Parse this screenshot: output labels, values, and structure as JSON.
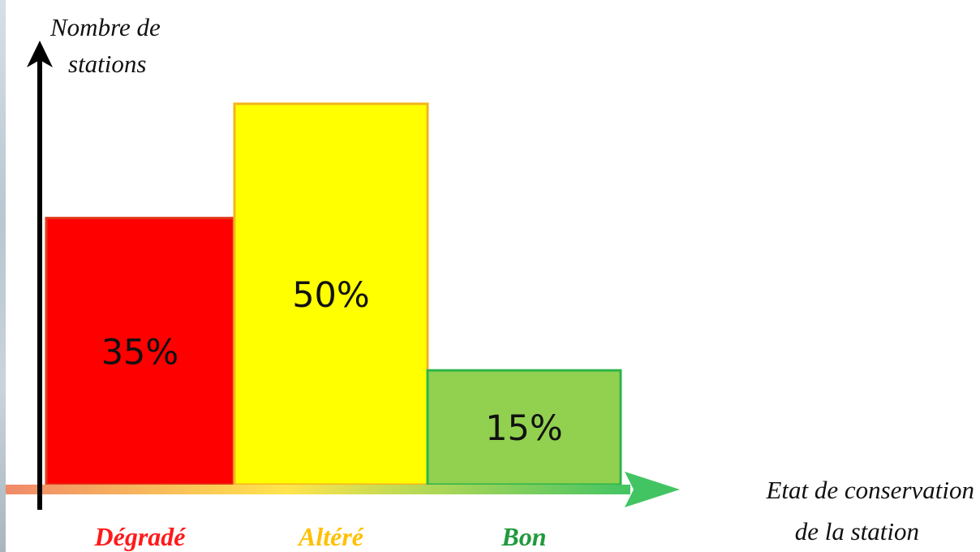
{
  "chart_data": {
    "type": "bar",
    "ylabel_lines": [
      "Nombre de",
      "stations"
    ],
    "xlabel_lines": [
      "Etat de conservation",
      "de la station"
    ],
    "categories": [
      "Dégradé",
      "Altéré",
      "Bon"
    ],
    "values": [
      35,
      50,
      15
    ],
    "value_labels": [
      "35%",
      "50%",
      "15%"
    ],
    "ylim": [
      0,
      60
    ],
    "grid": false,
    "legend": "none",
    "bar_fill_colors": [
      "#ff0000",
      "#ffff00",
      "#92d050"
    ],
    "bar_stroke_colors": [
      "#e03a1e",
      "#f3b41f",
      "#2fb54a"
    ],
    "category_label_colors": [
      "#ff1a1a",
      "#ffc000",
      "#1f9a3c"
    ],
    "x_arrow_gradient": [
      "#f08a6a",
      "#ffe44d",
      "#43c463"
    ],
    "y_axis_color": "#000000"
  }
}
